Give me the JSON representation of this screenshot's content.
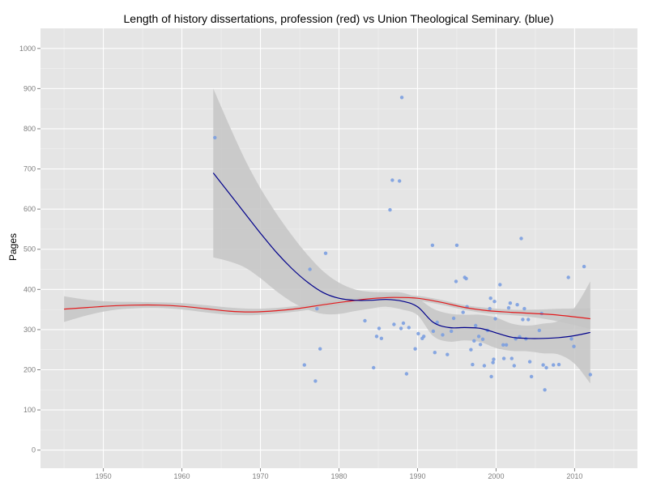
{
  "chart_data": {
    "type": "scatter",
    "title": "Length of history dissertations, profession (red) vs Union Theological Seminary. (blue)",
    "xlabel": "",
    "ylabel": "Pages",
    "xlim": [
      1942,
      2018
    ],
    "ylim": [
      -45,
      1050
    ],
    "x_ticks": [
      1950,
      1960,
      1970,
      1980,
      1990,
      2000,
      2010
    ],
    "y_ticks": [
      0,
      100,
      200,
      300,
      400,
      500,
      600,
      700,
      800,
      900,
      1000
    ],
    "grid": true,
    "legend": "none",
    "colors": {
      "panel": "#e5e5e5",
      "grid": "#ffffff",
      "points": "#7b9fe0",
      "profession_line": "#e31a1c",
      "union_line": "#00008b",
      "ribbon": "#c5c5c5"
    },
    "points": [
      {
        "x": 1964.2,
        "y": 778
      },
      {
        "x": 1975.6,
        "y": 212
      },
      {
        "x": 1976.3,
        "y": 450
      },
      {
        "x": 1977.0,
        "y": 172
      },
      {
        "x": 1977.2,
        "y": 352
      },
      {
        "x": 1977.6,
        "y": 252
      },
      {
        "x": 1978.3,
        "y": 490
      },
      {
        "x": 1983.3,
        "y": 322
      },
      {
        "x": 1984.4,
        "y": 205
      },
      {
        "x": 1984.8,
        "y": 283
      },
      {
        "x": 1985.4,
        "y": 278
      },
      {
        "x": 1985.1,
        "y": 303
      },
      {
        "x": 1986.5,
        "y": 598
      },
      {
        "x": 1986.8,
        "y": 672
      },
      {
        "x": 1987.0,
        "y": 313
      },
      {
        "x": 1987.7,
        "y": 670
      },
      {
        "x": 1987.9,
        "y": 303
      },
      {
        "x": 1988.0,
        "y": 878
      },
      {
        "x": 1988.2,
        "y": 316
      },
      {
        "x": 1988.6,
        "y": 190
      },
      {
        "x": 1988.9,
        "y": 305
      },
      {
        "x": 1989.7,
        "y": 252
      },
      {
        "x": 1990.1,
        "y": 290
      },
      {
        "x": 1990.6,
        "y": 278
      },
      {
        "x": 1990.8,
        "y": 283
      },
      {
        "x": 1991.9,
        "y": 510
      },
      {
        "x": 1992.0,
        "y": 296
      },
      {
        "x": 1992.2,
        "y": 243
      },
      {
        "x": 1992.5,
        "y": 318
      },
      {
        "x": 1993.2,
        "y": 287
      },
      {
        "x": 1993.8,
        "y": 238
      },
      {
        "x": 1994.3,
        "y": 296
      },
      {
        "x": 1994.6,
        "y": 328
      },
      {
        "x": 1994.9,
        "y": 420
      },
      {
        "x": 1995.0,
        "y": 510
      },
      {
        "x": 1995.8,
        "y": 343
      },
      {
        "x": 1996.2,
        "y": 427
      },
      {
        "x": 1996.3,
        "y": 357
      },
      {
        "x": 1996.0,
        "y": 430
      },
      {
        "x": 1996.8,
        "y": 250
      },
      {
        "x": 1997.0,
        "y": 213
      },
      {
        "x": 1997.2,
        "y": 272
      },
      {
        "x": 1997.4,
        "y": 310
      },
      {
        "x": 1997.8,
        "y": 283
      },
      {
        "x": 1998.0,
        "y": 263
      },
      {
        "x": 1998.3,
        "y": 276
      },
      {
        "x": 1998.5,
        "y": 210
      },
      {
        "x": 1998.9,
        "y": 298
      },
      {
        "x": 1999.2,
        "y": 352
      },
      {
        "x": 1999.3,
        "y": 378
      },
      {
        "x": 1999.4,
        "y": 183
      },
      {
        "x": 1999.6,
        "y": 218
      },
      {
        "x": 1999.7,
        "y": 226
      },
      {
        "x": 1999.8,
        "y": 370
      },
      {
        "x": 1999.9,
        "y": 327
      },
      {
        "x": 2000.5,
        "y": 412
      },
      {
        "x": 2000.9,
        "y": 262
      },
      {
        "x": 2001.0,
        "y": 228
      },
      {
        "x": 2001.3,
        "y": 262
      },
      {
        "x": 2001.6,
        "y": 354
      },
      {
        "x": 2001.8,
        "y": 366
      },
      {
        "x": 2002.0,
        "y": 228
      },
      {
        "x": 2002.3,
        "y": 210
      },
      {
        "x": 2002.5,
        "y": 277
      },
      {
        "x": 2002.7,
        "y": 362
      },
      {
        "x": 2003.0,
        "y": 282
      },
      {
        "x": 2003.2,
        "y": 527
      },
      {
        "x": 2003.4,
        "y": 325
      },
      {
        "x": 2003.6,
        "y": 352
      },
      {
        "x": 2003.8,
        "y": 277
      },
      {
        "x": 2004.1,
        "y": 325
      },
      {
        "x": 2004.3,
        "y": 220
      },
      {
        "x": 2004.5,
        "y": 183
      },
      {
        "x": 2005.5,
        "y": 298
      },
      {
        "x": 2005.8,
        "y": 340
      },
      {
        "x": 2006.0,
        "y": 212
      },
      {
        "x": 2006.2,
        "y": 150
      },
      {
        "x": 2006.4,
        "y": 205
      },
      {
        "x": 2007.3,
        "y": 212
      },
      {
        "x": 2008.0,
        "y": 213
      },
      {
        "x": 2009.2,
        "y": 430
      },
      {
        "x": 2009.6,
        "y": 277
      },
      {
        "x": 2009.9,
        "y": 258
      },
      {
        "x": 2011.2,
        "y": 457
      },
      {
        "x": 2012.0,
        "y": 188
      }
    ],
    "series": [
      {
        "x": [
          1945,
          1948,
          1951,
          1954,
          1957,
          1960,
          1963,
          1966,
          1969,
          1972,
          1975,
          1978,
          1981,
          1984,
          1987,
          1990,
          1993,
          1996,
          1999,
          2002,
          2005,
          2008,
          2012
        ],
        "values": [
          351,
          355,
          359,
          361,
          361,
          358,
          352,
          346,
          344,
          347,
          353,
          362,
          370,
          377,
          380,
          378,
          368,
          355,
          347,
          343,
          340,
          336,
          327
        ],
        "upper": [
          383,
          374,
          370,
          369,
          368,
          366,
          361,
          355,
          352,
          354,
          360,
          369,
          377,
          383,
          386,
          384,
          374,
          361,
          354,
          350,
          350,
          352,
          353
        ],
        "lower": [
          319,
          336,
          348,
          353,
          354,
          350,
          343,
          337,
          336,
          340,
          346,
          355,
          363,
          371,
          374,
          372,
          362,
          349,
          340,
          336,
          330,
          320,
          301
        ]
      },
      {
        "x": [
          1964,
          1966,
          1968,
          1970,
          1972,
          1974,
          1976,
          1978,
          1980,
          1982,
          1984,
          1986,
          1988,
          1990,
          1992,
          1994,
          1996,
          1998,
          2000,
          2002,
          2004,
          2006,
          2008,
          2010,
          2012
        ],
        "values": [
          690,
          640,
          590,
          540,
          493,
          452,
          418,
          392,
          378,
          373,
          373,
          375,
          371,
          357,
          318,
          305,
          305,
          303,
          292,
          281,
          278,
          278,
          280,
          285,
          293
        ],
        "upper": [
          900,
          810,
          725,
          652,
          590,
          535,
          486,
          445,
          417,
          400,
          394,
          393,
          392,
          378,
          352,
          340,
          337,
          337,
          330,
          315,
          310,
          315,
          322,
          355,
          420
        ],
        "lower": [
          480,
          470,
          455,
          428,
          396,
          369,
          350,
          339,
          339,
          346,
          352,
          357,
          350,
          336,
          284,
          270,
          273,
          269,
          254,
          247,
          246,
          241,
          238,
          215,
          166
        ]
      }
    ]
  }
}
